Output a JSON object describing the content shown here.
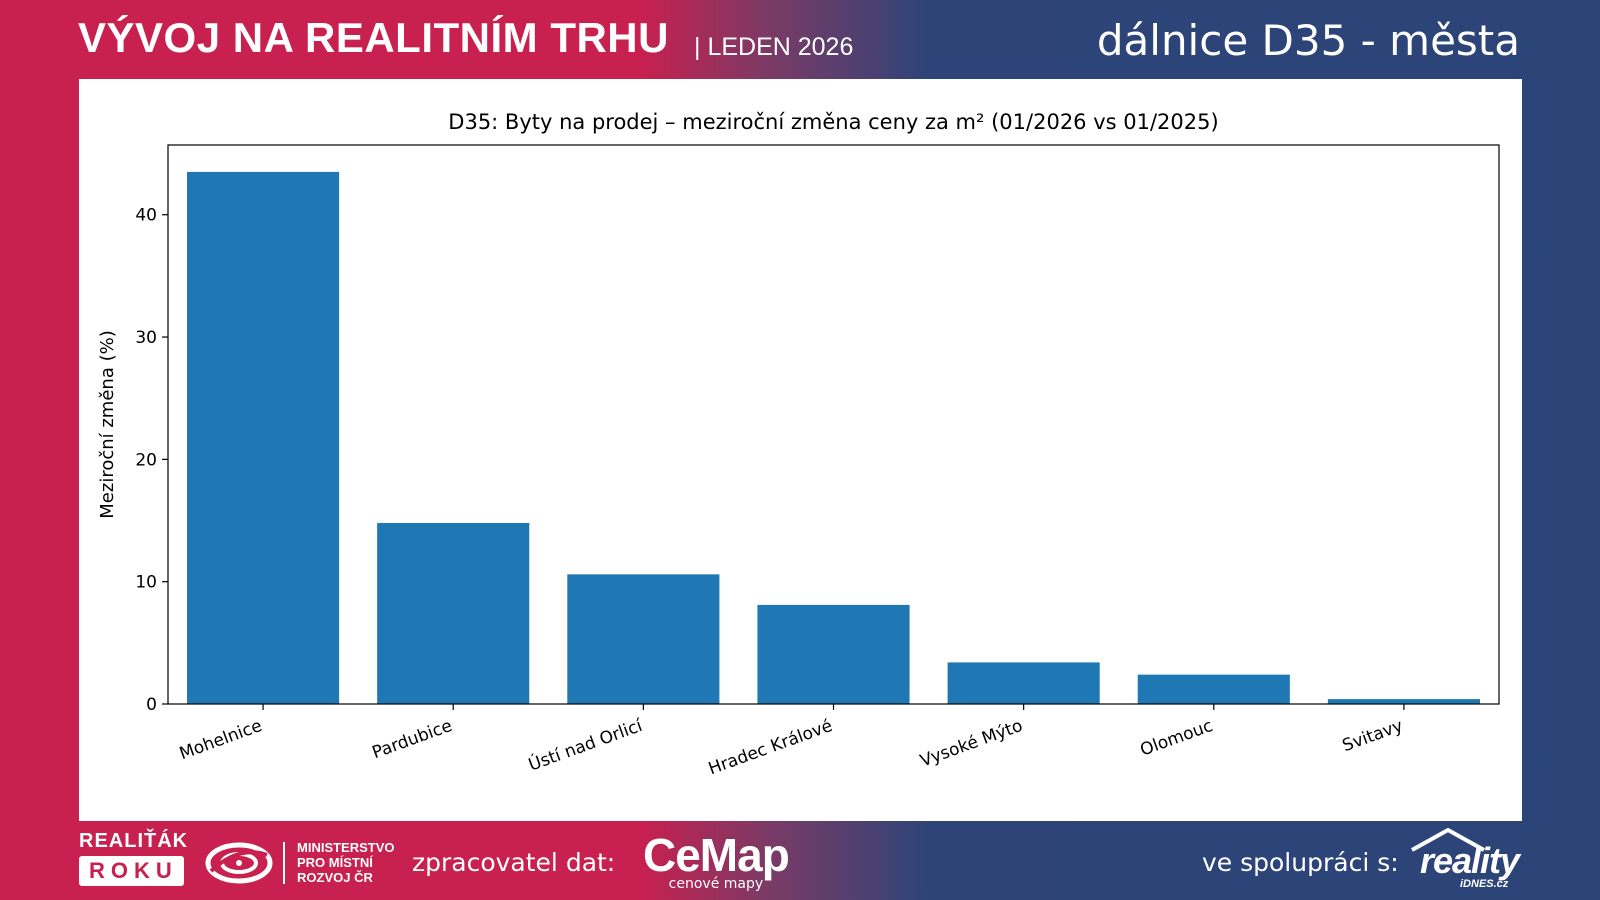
{
  "header": {
    "title": "VÝVOJ NA REALITNÍM TRHU",
    "date": "| LEDEN 2026",
    "right_title": "dálnice D35 - města"
  },
  "footer": {
    "realitak_top": "REALIŤÁK",
    "realitak_bottom": "ROKU",
    "ministry_lines": [
      "MINISTERSTVO",
      "PRO MÍSTNÍ",
      "ROZVOJ ČR"
    ],
    "processor_label": "zpracovatel dat:",
    "cemap_name": "CeMap",
    "cemap_sub": "cenové mapy",
    "partner_label": "ve spolupráci s:",
    "reality_name": "reality",
    "reality_sub": "iDNES.cz"
  },
  "colors": {
    "bar": "#1f77b4",
    "brand_red": "#c8204f",
    "brand_blue": "#2b4478"
  },
  "chart_data": {
    "type": "bar",
    "title": "D35: Byty na prodej – meziroční změna ceny za m² (01/2026 vs 01/2025)",
    "xlabel": "",
    "ylabel": "Meziroční změna (%)",
    "categories": [
      "Mohelnice",
      "Pardubice",
      "Ústí nad Orlicí",
      "Hradec Králové",
      "Vysoké Mýto",
      "Olomouc",
      "Svitavy"
    ],
    "values": [
      43.5,
      14.8,
      10.6,
      8.1,
      3.4,
      2.4,
      0.4
    ],
    "ylim": [
      0,
      45.7
    ],
    "yticks": [
      0,
      10,
      20,
      30,
      40
    ],
    "grid": false,
    "legend": "none"
  }
}
